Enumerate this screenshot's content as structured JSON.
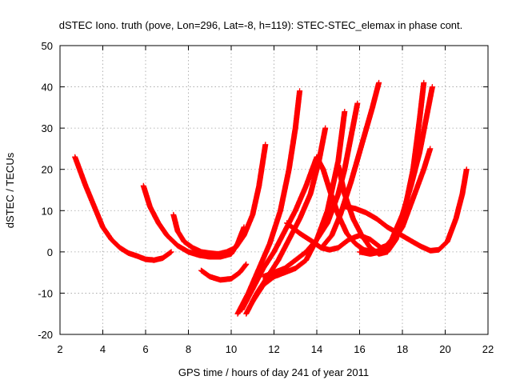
{
  "chart_data": {
    "type": "scatter",
    "title": "dSTEC Iono. truth (pove, Lon=296, Lat=-8, h=119): STEC-STEC_elemax in phase cont.",
    "xlabel": "GPS time / hours of day 241 of year 2011",
    "ylabel": "dSTEC  / TECUs",
    "xlim": [
      2,
      22
    ],
    "ylim": [
      -20,
      50
    ],
    "xticks": [
      2,
      4,
      6,
      8,
      10,
      12,
      14,
      16,
      18,
      20,
      22
    ],
    "yticks": [
      -20,
      -10,
      0,
      10,
      20,
      30,
      40,
      50
    ],
    "grid": true,
    "marker": "plus",
    "color": "#ff0000",
    "series": [
      {
        "x": [
          2.7,
          3.2,
          3.6,
          4.0,
          4.4,
          4.8,
          5.2,
          5.6,
          6.0,
          6.4,
          6.8,
          7.2
        ],
        "y": [
          23,
          16,
          11,
          6,
          3,
          1,
          -0.3,
          -1,
          -1.8,
          -2,
          -1.5,
          0
        ]
      },
      {
        "x": [
          5.9,
          6.2,
          6.6,
          7.0,
          7.5,
          8.0,
          8.5,
          9.0,
          9.5,
          10.0,
          10.3,
          10.6
        ],
        "y": [
          16,
          11,
          7,
          4,
          1.5,
          0,
          -0.8,
          -1.2,
          -1.2,
          -0.5,
          2,
          6
        ]
      },
      {
        "x": [
          7.3,
          7.5,
          7.8,
          8.2,
          8.6,
          9.0,
          9.4,
          9.8,
          10.2,
          10.6,
          11.0,
          11.3,
          11.6
        ],
        "y": [
          9,
          5,
          2.5,
          1,
          0,
          -0.3,
          -0.5,
          0,
          1,
          4,
          9,
          16,
          26
        ]
      },
      {
        "x": [
          8.6,
          9.0,
          9.5,
          10.0,
          10.4,
          10.7
        ],
        "y": [
          -4.5,
          -6,
          -6.8,
          -6.5,
          -5,
          -3
        ]
      },
      {
        "x": [
          10.3,
          10.8,
          11.3,
          11.8,
          12.3,
          12.7,
          13.0,
          13.2
        ],
        "y": [
          -15,
          -10,
          -4,
          2,
          10,
          20,
          30,
          39
        ]
      },
      {
        "x": [
          10.5,
          11.0,
          11.5,
          12.0,
          12.5,
          13.0,
          13.5,
          14.0
        ],
        "y": [
          -14,
          -9,
          -4,
          0,
          5,
          10,
          16,
          23
        ]
      },
      {
        "x": [
          10.7,
          11.2,
          11.7,
          12.2,
          12.7,
          13.2,
          13.7,
          14.1,
          14.4
        ],
        "y": [
          -15,
          -10,
          -6,
          -2,
          3,
          8,
          14,
          22,
          30
        ]
      },
      {
        "x": [
          11.0,
          11.5,
          12.0,
          12.5,
          13.0,
          13.5,
          14.0,
          14.5,
          15.0,
          15.3
        ],
        "y": [
          -12,
          -8,
          -6,
          -5,
          -4,
          -2,
          3,
          10,
          22,
          34
        ]
      },
      {
        "x": [
          11.5,
          12.0,
          12.5,
          13.0,
          13.5,
          14.0,
          14.5,
          15.0,
          15.3,
          15.6,
          15.9
        ],
        "y": [
          -6,
          -5,
          -4,
          -2,
          0,
          3,
          7,
          14,
          20,
          28,
          36
        ]
      },
      {
        "x": [
          12.6,
          13.2,
          13.8,
          14.2,
          14.6,
          15.0,
          15.5,
          16.0,
          16.5,
          17.0,
          17.5,
          18.0,
          18.5,
          19.0,
          19.3
        ],
        "y": [
          7,
          4.5,
          2.5,
          1,
          0.5,
          1,
          3,
          4,
          3,
          1,
          2,
          6,
          13,
          20,
          25
        ]
      },
      {
        "x": [
          14.0,
          14.3,
          14.6,
          15.0,
          15.4,
          15.8,
          16.2,
          16.6,
          17.0,
          17.4
        ],
        "y": [
          23,
          20,
          15,
          9,
          4.5,
          2,
          0.5,
          0,
          0.3,
          1.5
        ]
      },
      {
        "x": [
          15.0,
          15.3,
          15.7,
          16.1,
          16.5,
          16.9,
          17.3,
          17.7,
          18.1,
          18.5,
          18.8,
          19.0
        ],
        "y": [
          21,
          14,
          8,
          4,
          1,
          -0.5,
          0,
          3,
          10,
          20,
          32,
          41
        ]
      },
      {
        "x": [
          15.3,
          15.8,
          16.3,
          16.8,
          17.3,
          17.8,
          18.3,
          18.8,
          19.3,
          19.7,
          20.1,
          20.5,
          20.8,
          21.0
        ],
        "y": [
          11,
          10.5,
          9.5,
          8,
          6,
          4.5,
          3,
          1.5,
          0.3,
          0.5,
          2.5,
          8,
          14,
          20
        ]
      },
      {
        "x": [
          14.3,
          14.7,
          15.1,
          15.6,
          16.1,
          16.6,
          16.9
        ],
        "y": [
          1.5,
          4,
          9,
          17,
          26,
          35,
          41
        ]
      },
      {
        "x": [
          16.0,
          16.5,
          17.0,
          17.5,
          18.0,
          18.4,
          18.8,
          19.1,
          19.4
        ],
        "y": [
          0,
          -0.5,
          0,
          3,
          9,
          16,
          24,
          32,
          40
        ]
      }
    ]
  }
}
